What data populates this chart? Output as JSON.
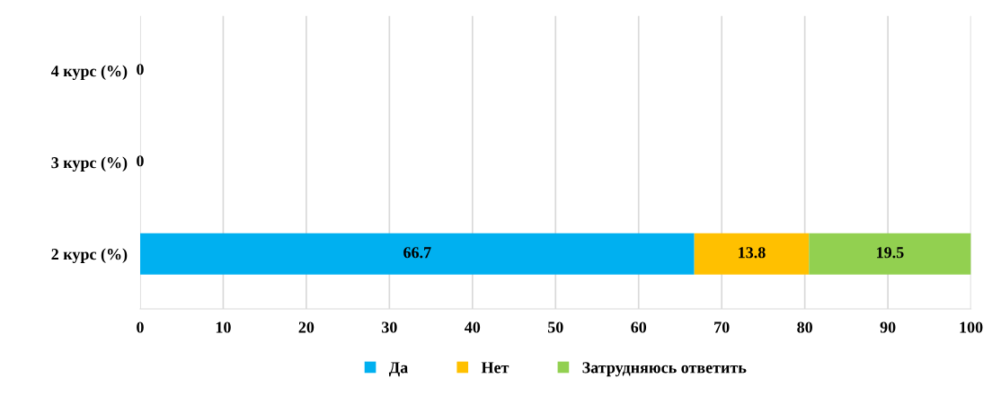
{
  "chart_data": {
    "type": "bar",
    "orientation": "horizontal",
    "stacked": true,
    "categories": [
      "4 курс (%)",
      "3 курс (%)",
      "2 курс (%)"
    ],
    "series": [
      {
        "name": "Да",
        "color": "#00b0f0",
        "values": [
          0,
          0,
          66.7
        ],
        "value_labels": [
          null,
          null,
          "66.7"
        ]
      },
      {
        "name": "Нет",
        "color": "#ffc000",
        "values": [
          0,
          0,
          13.8
        ],
        "value_labels": [
          null,
          null,
          "13.8"
        ]
      },
      {
        "name": "Затрудняюсь ответить",
        "color": "#92d050",
        "values": [
          0,
          0,
          19.5
        ],
        "value_labels": [
          "0",
          "0",
          "19.5"
        ]
      }
    ],
    "xlim": [
      0,
      100
    ],
    "xticks": [
      0,
      10,
      20,
      30,
      40,
      50,
      60,
      70,
      80,
      90,
      100
    ],
    "grid": "x",
    "legend": "bottom"
  }
}
